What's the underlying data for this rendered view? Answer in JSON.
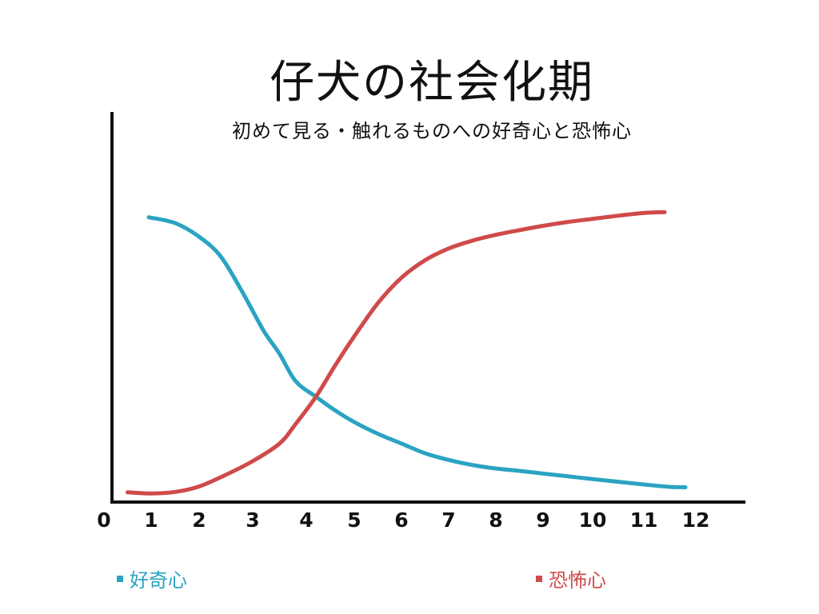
{
  "chart_data": {
    "type": "line",
    "title": "仔犬の社会化期",
    "subtitle": "初めて見る・触れるものへの好奇心と恐怖心",
    "xlabel": "",
    "ylabel": "",
    "x_ticks": [
      "0",
      "1",
      "2",
      "3",
      "4",
      "5",
      "6",
      "7",
      "8",
      "9",
      "10",
      "11",
      "12"
    ],
    "xlim": [
      0,
      13.2
    ],
    "ylim": [
      0,
      100
    ],
    "grid": false,
    "legend_position": "bottom",
    "series": [
      {
        "name": "好奇心",
        "color": "#2ba3c2",
        "points": [
          [
            0.95,
            73
          ],
          [
            1.5,
            71.5
          ],
          [
            2,
            68
          ],
          [
            2.4,
            63
          ],
          [
            2.8,
            54
          ],
          [
            3.2,
            44
          ],
          [
            3.5,
            38
          ],
          [
            3.8,
            31
          ],
          [
            4.2,
            27
          ],
          [
            4.6,
            23.5
          ],
          [
            5,
            20.5
          ],
          [
            5.5,
            17.5
          ],
          [
            6,
            15
          ],
          [
            6.5,
            12.5
          ],
          [
            7,
            10.8
          ],
          [
            7.5,
            9.5
          ],
          [
            8,
            8.6
          ],
          [
            8.5,
            8
          ],
          [
            9,
            7.3
          ],
          [
            9.5,
            6.6
          ],
          [
            10,
            5.9
          ],
          [
            10.5,
            5.2
          ],
          [
            11,
            4.5
          ],
          [
            11.5,
            3.9
          ],
          [
            11.8,
            3.8
          ]
        ]
      },
      {
        "name": "恐怖心",
        "color": "#d04a4a",
        "points": [
          [
            0.5,
            2.5
          ],
          [
            1,
            2.2
          ],
          [
            1.5,
            2.6
          ],
          [
            2,
            4
          ],
          [
            2.5,
            7
          ],
          [
            3,
            10.5
          ],
          [
            3.5,
            15
          ],
          [
            3.8,
            20
          ],
          [
            4.2,
            27
          ],
          [
            4.6,
            35
          ],
          [
            5,
            42.5
          ],
          [
            5.5,
            51
          ],
          [
            6,
            57.5
          ],
          [
            6.5,
            62
          ],
          [
            7,
            65
          ],
          [
            7.5,
            67
          ],
          [
            8,
            68.5
          ],
          [
            8.5,
            69.7
          ],
          [
            9,
            70.8
          ],
          [
            9.5,
            71.8
          ],
          [
            10,
            72.6
          ],
          [
            10.5,
            73.4
          ],
          [
            11,
            74.1
          ],
          [
            11.4,
            74.3
          ]
        ]
      }
    ]
  },
  "legend": [
    {
      "label": "好奇心",
      "color": "#2ba3c2"
    },
    {
      "label": "恐怖心",
      "color": "#d04a4a"
    }
  ]
}
